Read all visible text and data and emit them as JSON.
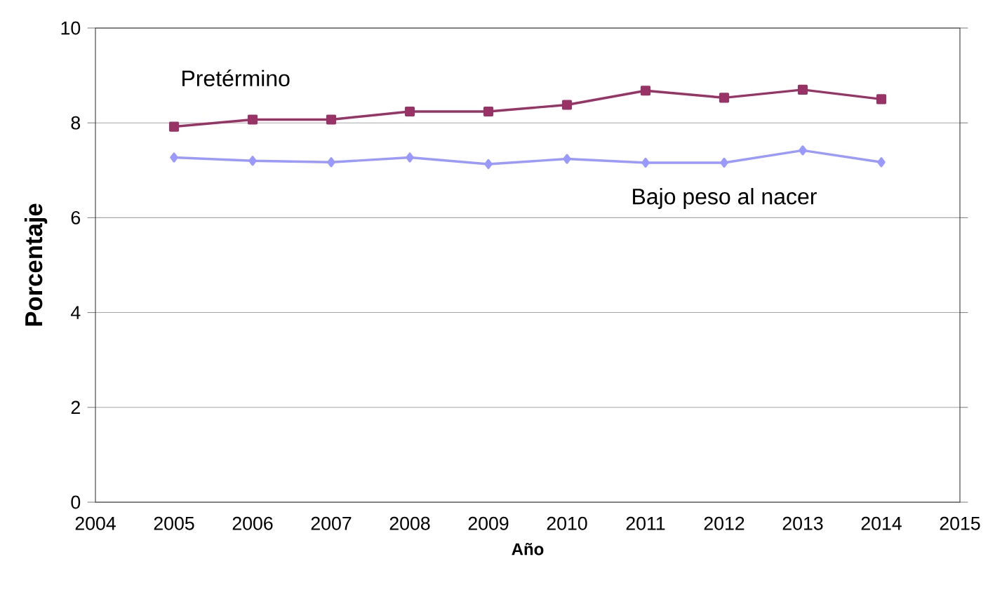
{
  "chart_data": {
    "type": "line",
    "xlabel": "Año",
    "ylabel": "Porcentaje",
    "x": [
      2005,
      2006,
      2007,
      2008,
      2009,
      2010,
      2011,
      2012,
      2013,
      2014
    ],
    "series": [
      {
        "name": "Pretérmino",
        "color": "#993366",
        "marker": "square",
        "values": [
          7.92,
          8.07,
          8.07,
          8.24,
          8.24,
          8.38,
          8.68,
          8.53,
          8.7,
          8.5
        ]
      },
      {
        "name": "Bajo peso al nacer",
        "color": "#9999ff",
        "marker": "diamond",
        "values": [
          7.27,
          7.2,
          7.17,
          7.27,
          7.13,
          7.24,
          7.16,
          7.16,
          7.42,
          7.17
        ]
      }
    ],
    "xlim": [
      2004,
      2015
    ],
    "xticks": [
      2004,
      2005,
      2006,
      2007,
      2008,
      2009,
      2010,
      2011,
      2012,
      2013,
      2014,
      2015
    ],
    "ylim": [
      0,
      10
    ],
    "yticks": [
      0,
      2,
      4,
      6,
      8,
      10
    ],
    "grid": "y",
    "line_style": "solid"
  }
}
